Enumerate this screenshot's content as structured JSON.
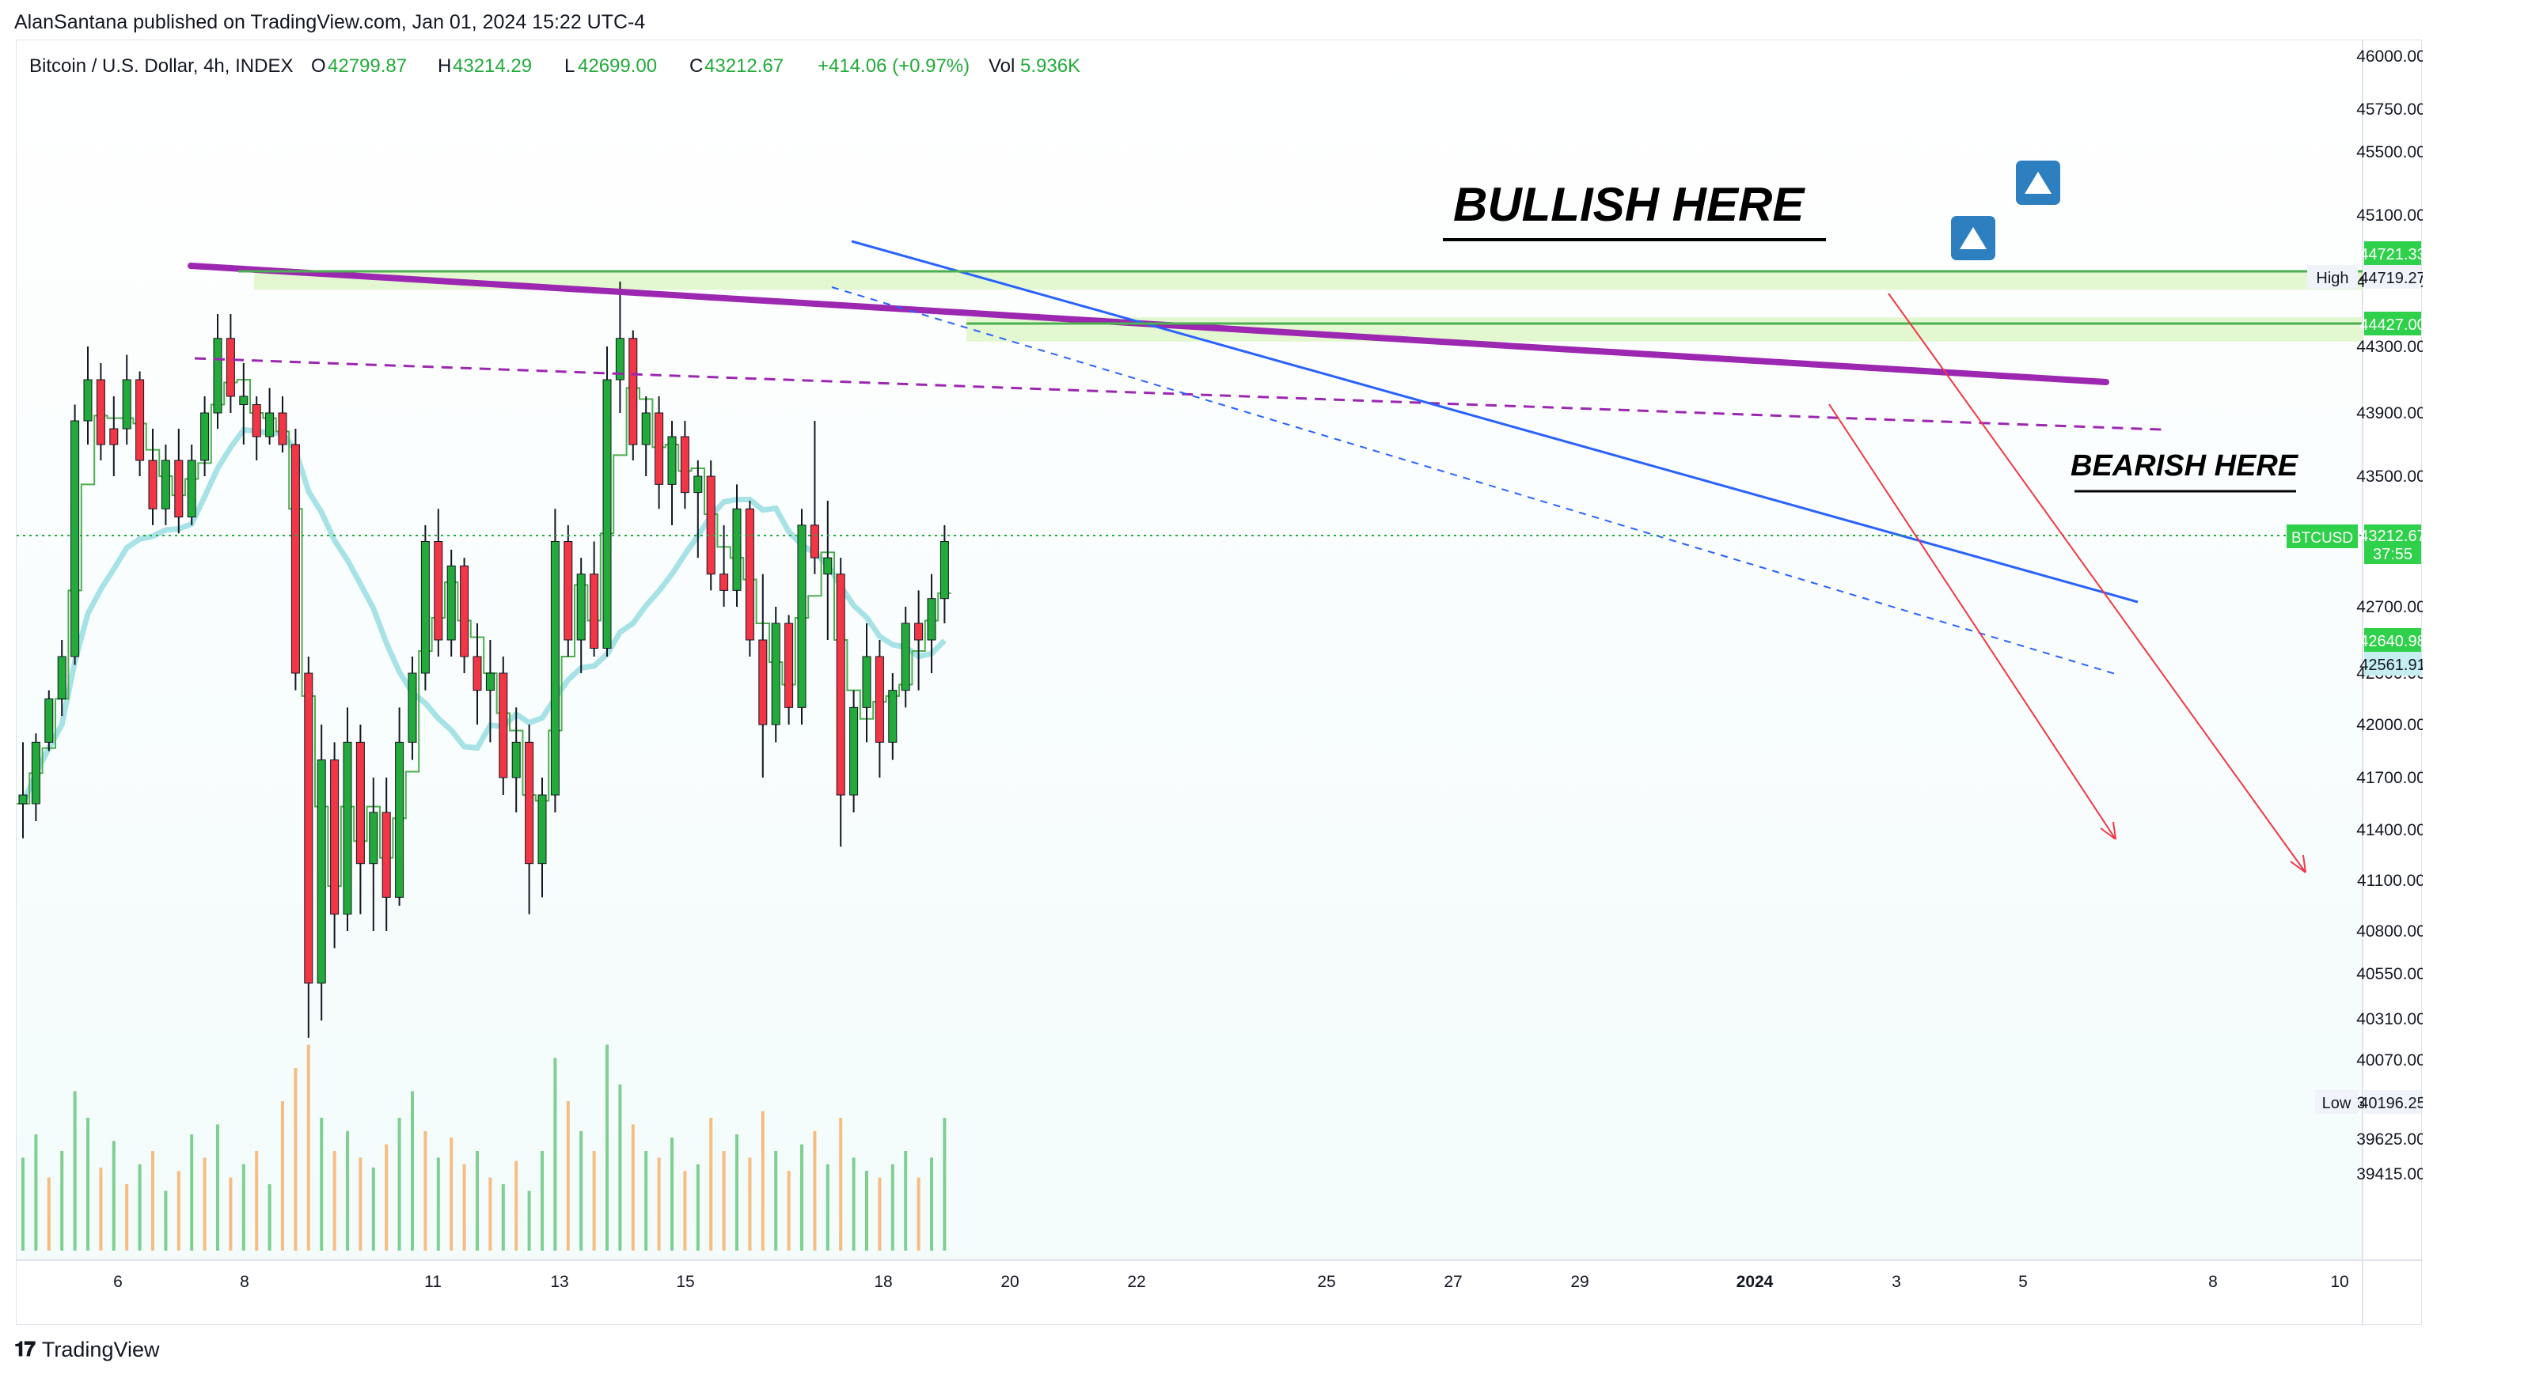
{
  "publisher_line": "AlanSantana published on TradingView.com, Jan 01, 2024 15:22 UTC-4",
  "footer": {
    "logo_text": "TradingView"
  },
  "legend": {
    "symbol": "Bitcoin / U.S. Dollar, 4h, INDEX",
    "o_label": "O",
    "o_value": "42799.87",
    "h_label": "H",
    "h_value": "43214.29",
    "l_label": "L",
    "l_value": "42699.00",
    "c_label": "C",
    "c_value": "43212.67",
    "change": "+414.06 (+0.97%)",
    "vol_label": "Vol",
    "vol_value": "5.936K"
  },
  "annotations": {
    "bullish": "BULLISH HERE",
    "bearish": "BEARISH HERE"
  },
  "colors": {
    "up": "#22ab3a",
    "down": "#f23645",
    "ma_fast": "#4caf50",
    "ma_slow": "#a7e3e6",
    "purple": "#9c27b0",
    "blue": "#2962ff",
    "red_arrow": "#f23645",
    "zone": "#dcf5c6",
    "label_green": "#2fd04a",
    "vol_up": "#57c26d",
    "vol_down": "#f5a85a"
  },
  "price_labels": {
    "high_tag": "High",
    "high_price": "44719.27",
    "low_tag": "Low",
    "low_price": "40196.25",
    "res1": "44721.33",
    "res2": "44427.00",
    "symbol_tag": "BTCUSD",
    "last_price": "43212.67",
    "countdown": "37:55",
    "ma_fast_value": "42640.98",
    "ma_slow_value": "42561.91"
  },
  "chart_data": {
    "type": "candlestick",
    "y_axis_ticks": [
      "46000.00",
      "45750.00",
      "45500.00",
      "45100.00",
      "44700.00",
      "44300.00",
      "43900.00",
      "43500.00",
      "42700.00",
      "42300.00",
      "42000.00",
      "41700.00",
      "41400.00",
      "41100.00",
      "40800.00",
      "40550.00",
      "40310.00",
      "40070.00",
      "39845.00",
      "39625.00",
      "39415.00"
    ],
    "x_axis_ticks": [
      "6",
      "8",
      "11",
      "13",
      "15",
      "18",
      "20",
      "22",
      "25",
      "27",
      "29",
      "2024",
      "3",
      "5",
      "8",
      "10"
    ],
    "ylim": [
      39330,
      46050
    ],
    "zones": [
      [
        44650,
        44760
      ],
      [
        44330,
        44480
      ]
    ],
    "ma_fast_last": 42640.98,
    "ma_slow_last": 42561.91,
    "candles": [
      [
        0,
        41600,
        41900,
        41350,
        41550
      ],
      [
        0,
        41550,
        41950,
        41450,
        41900
      ],
      [
        0,
        41900,
        42200,
        41850,
        42150
      ],
      [
        0,
        42150,
        42500,
        42050,
        42400
      ],
      [
        0,
        42400,
        43950,
        42350,
        43850
      ],
      [
        0,
        43850,
        44300,
        43700,
        44100
      ],
      [
        1,
        44100,
        44200,
        43600,
        43700
      ],
      [
        1,
        43700,
        44000,
        43500,
        43800
      ],
      [
        0,
        43800,
        44250,
        43700,
        44100
      ],
      [
        1,
        44100,
        44150,
        43500,
        43600
      ],
      [
        1,
        43600,
        43800,
        43200,
        43300
      ],
      [
        0,
        43300,
        43700,
        43200,
        43600
      ],
      [
        1,
        43600,
        43800,
        43150,
        43250
      ],
      [
        0,
        43250,
        43700,
        43200,
        43600
      ],
      [
        0,
        43600,
        44000,
        43500,
        43900
      ],
      [
        0,
        43900,
        44500,
        43800,
        44350
      ],
      [
        1,
        44350,
        44500,
        43900,
        44000
      ],
      [
        0,
        44000,
        44200,
        43700,
        43950
      ],
      [
        1,
        43950,
        44000,
        43600,
        43750
      ],
      [
        0,
        43750,
        44050,
        43700,
        43900
      ],
      [
        1,
        43900,
        44000,
        43650,
        43700
      ],
      [
        1,
        43700,
        43800,
        42200,
        42300
      ],
      [
        1,
        42300,
        42400,
        40200,
        40500
      ],
      [
        0,
        40500,
        42000,
        40300,
        41800
      ],
      [
        1,
        41800,
        41900,
        40700,
        40900
      ],
      [
        0,
        40900,
        42100,
        40800,
        41900
      ],
      [
        1,
        41900,
        42000,
        40900,
        41200
      ],
      [
        0,
        41200,
        41700,
        40800,
        41500
      ],
      [
        1,
        41500,
        41700,
        40800,
        41000
      ],
      [
        0,
        41000,
        42100,
        40950,
        41900
      ],
      [
        0,
        41900,
        42400,
        41800,
        42300
      ],
      [
        0,
        42300,
        43200,
        42200,
        43100
      ],
      [
        1,
        43100,
        43300,
        42400,
        42500
      ],
      [
        0,
        42500,
        43050,
        42400,
        42950
      ],
      [
        1,
        42950,
        43000,
        42300,
        42400
      ],
      [
        1,
        42400,
        42600,
        42000,
        42200
      ],
      [
        0,
        42200,
        42500,
        41900,
        42300
      ],
      [
        1,
        42300,
        42400,
        41600,
        41700
      ],
      [
        0,
        41700,
        42100,
        41500,
        41900
      ],
      [
        1,
        41900,
        42000,
        40900,
        41200
      ],
      [
        0,
        41200,
        41700,
        41000,
        41600
      ],
      [
        0,
        41600,
        43300,
        41500,
        43100
      ],
      [
        1,
        43100,
        43200,
        42400,
        42500
      ],
      [
        0,
        42500,
        43000,
        42300,
        42900
      ],
      [
        1,
        42900,
        43100,
        42400,
        42450
      ],
      [
        0,
        42450,
        44300,
        42400,
        44100
      ],
      [
        0,
        44100,
        44700,
        43900,
        44350
      ],
      [
        1,
        44350,
        44400,
        43600,
        43700
      ],
      [
        0,
        43700,
        44000,
        43500,
        43900
      ],
      [
        1,
        43900,
        44000,
        43300,
        43450
      ],
      [
        0,
        43450,
        43850,
        43200,
        43750
      ],
      [
        1,
        43750,
        43850,
        43300,
        43400
      ],
      [
        0,
        43400,
        43600,
        43000,
        43500
      ],
      [
        1,
        43500,
        43600,
        42800,
        42900
      ],
      [
        1,
        42900,
        43200,
        42700,
        42800
      ],
      [
        0,
        42800,
        43450,
        42700,
        43300
      ],
      [
        1,
        43300,
        43350,
        42400,
        42500
      ],
      [
        1,
        42500,
        42900,
        41700,
        42000
      ],
      [
        0,
        42000,
        42700,
        41900,
        42600
      ],
      [
        1,
        42600,
        42650,
        42000,
        42100
      ],
      [
        0,
        42100,
        43300,
        42000,
        43200
      ],
      [
        1,
        43200,
        43850,
        42900,
        43000
      ],
      [
        0,
        43000,
        43350,
        42500,
        42900
      ],
      [
        1,
        42900,
        43000,
        41300,
        41600
      ],
      [
        0,
        41600,
        42200,
        41500,
        42100
      ],
      [
        0,
        42100,
        42600,
        41900,
        42400
      ],
      [
        1,
        42400,
        42500,
        41700,
        41900
      ],
      [
        0,
        41900,
        42300,
        41800,
        42200
      ],
      [
        0,
        42200,
        42700,
        42100,
        42600
      ],
      [
        1,
        42600,
        42800,
        42200,
        42500
      ],
      [
        0,
        42500,
        42900,
        42300,
        42750
      ],
      [
        0,
        42750,
        43200,
        42600,
        43100
      ]
    ],
    "volume": [
      [
        0,
        28
      ],
      [
        0,
        35
      ],
      [
        1,
        22
      ],
      [
        0,
        30
      ],
      [
        0,
        48
      ],
      [
        0,
        40
      ],
      [
        1,
        25
      ],
      [
        0,
        33
      ],
      [
        1,
        20
      ],
      [
        0,
        26
      ],
      [
        1,
        30
      ],
      [
        0,
        18
      ],
      [
        1,
        24
      ],
      [
        0,
        35
      ],
      [
        1,
        28
      ],
      [
        0,
        38
      ],
      [
        1,
        22
      ],
      [
        0,
        26
      ],
      [
        1,
        30
      ],
      [
        0,
        20
      ],
      [
        1,
        45
      ],
      [
        1,
        55
      ],
      [
        1,
        62
      ],
      [
        0,
        40
      ],
      [
        1,
        30
      ],
      [
        0,
        36
      ],
      [
        1,
        28
      ],
      [
        0,
        25
      ],
      [
        1,
        32
      ],
      [
        0,
        40
      ],
      [
        0,
        48
      ],
      [
        1,
        36
      ],
      [
        0,
        28
      ],
      [
        1,
        34
      ],
      [
        1,
        26
      ],
      [
        0,
        30
      ],
      [
        1,
        22
      ],
      [
        0,
        20
      ],
      [
        1,
        27
      ],
      [
        0,
        18
      ],
      [
        0,
        30
      ],
      [
        0,
        58
      ],
      [
        1,
        45
      ],
      [
        0,
        36
      ],
      [
        1,
        30
      ],
      [
        0,
        62
      ],
      [
        0,
        50
      ],
      [
        1,
        38
      ],
      [
        0,
        30
      ],
      [
        1,
        28
      ],
      [
        0,
        34
      ],
      [
        1,
        24
      ],
      [
        0,
        26
      ],
      [
        1,
        40
      ],
      [
        1,
        30
      ],
      [
        0,
        35
      ],
      [
        1,
        28
      ],
      [
        1,
        42
      ],
      [
        0,
        30
      ],
      [
        1,
        24
      ],
      [
        0,
        32
      ],
      [
        1,
        36
      ],
      [
        0,
        26
      ],
      [
        1,
        40
      ],
      [
        0,
        28
      ],
      [
        0,
        24
      ],
      [
        1,
        22
      ],
      [
        0,
        26
      ],
      [
        0,
        30
      ],
      [
        1,
        22
      ],
      [
        0,
        28
      ],
      [
        0,
        40
      ]
    ]
  }
}
